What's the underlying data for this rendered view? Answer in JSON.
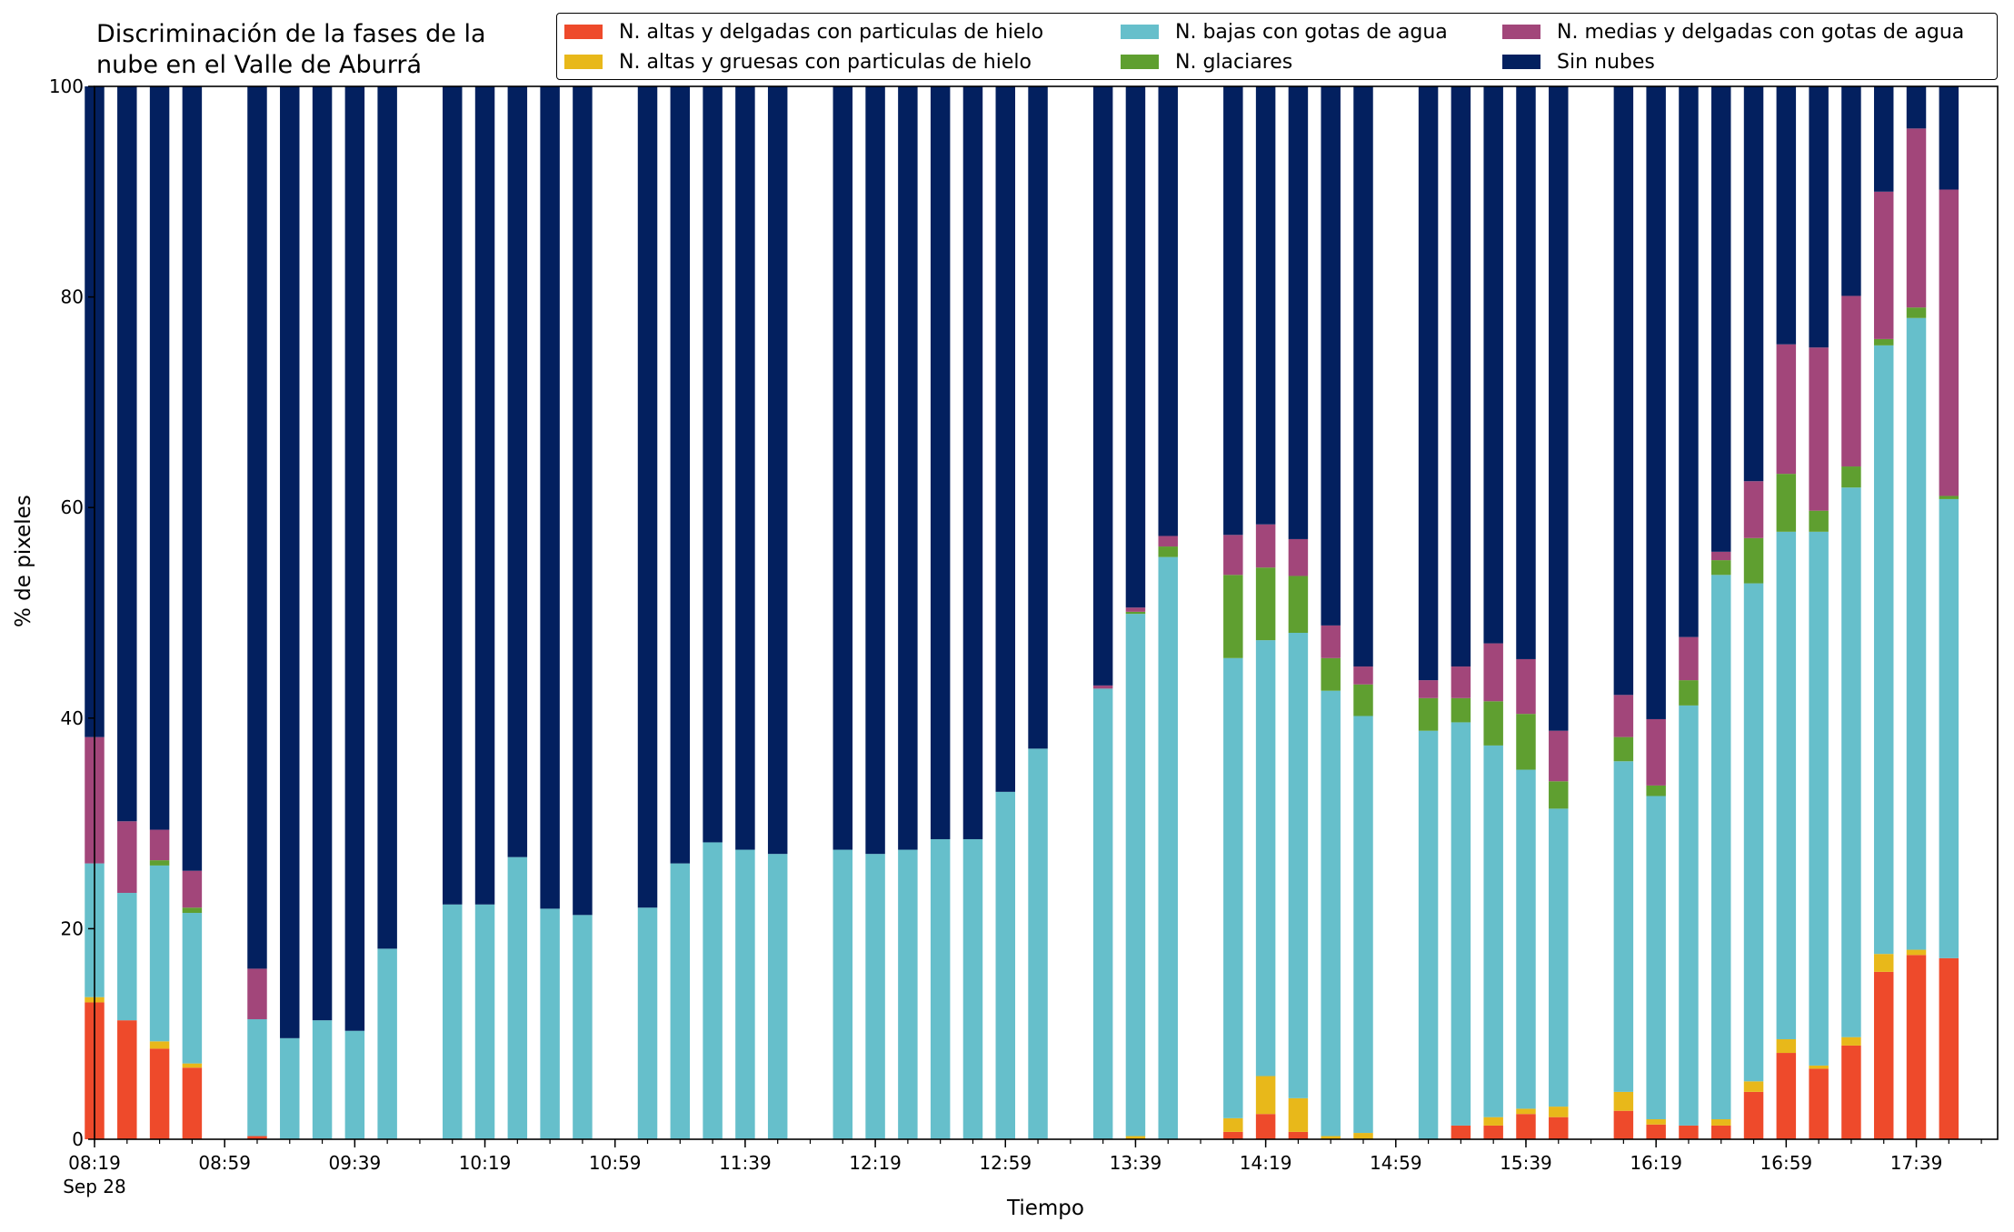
{
  "chart_data": {
    "type": "bar",
    "stacked": true,
    "title_lines": [
      "Discriminación de la fases de la",
      "nube en el Valle de Aburrá"
    ],
    "xlabel": "Tiempo",
    "ylabel": "% de pixeles",
    "ylim": [
      0,
      100
    ],
    "yticks": [
      0,
      20,
      40,
      60,
      80,
      100
    ],
    "xlim": [
      0,
      585
    ],
    "xtick_minutes": [
      0,
      40,
      80,
      120,
      160,
      200,
      240,
      280,
      320,
      360,
      400,
      440,
      480,
      520,
      560
    ],
    "xtick_labels": [
      "08:19",
      "08:59",
      "09:39",
      "10:19",
      "10:59",
      "11:39",
      "12:19",
      "12:59",
      "13:39",
      "14:19",
      "14:59",
      "15:39",
      "16:19",
      "16:59",
      "17:39"
    ],
    "xtick_sublabel": "Sep 28",
    "legend_position": "top-right",
    "grid": false,
    "x_minutes": [
      0,
      10,
      20,
      30,
      50,
      60,
      70,
      80,
      90,
      110,
      120,
      130,
      140,
      150,
      170,
      180,
      190,
      200,
      210,
      230,
      240,
      250,
      260,
      270,
      280,
      290,
      310,
      320,
      330,
      350,
      360,
      370,
      380,
      390,
      410,
      420,
      430,
      440,
      450,
      470,
      480,
      490,
      500,
      510,
      520,
      530,
      540,
      550,
      560,
      570
    ],
    "series": [
      {
        "name": "N. altas y delgadas con particulas de hielo",
        "color": "#ee4a2b",
        "values": [
          13,
          11.3,
          8.6,
          6.8,
          0.3,
          0,
          0,
          0,
          0,
          0,
          0,
          0,
          0,
          0,
          0,
          0,
          0,
          0,
          0,
          0,
          0,
          0,
          0,
          0,
          0,
          0,
          0,
          0,
          0,
          0.7,
          2.4,
          0.7,
          0,
          0,
          0,
          1.3,
          1.3,
          2.4,
          2.1,
          2.7,
          1.4,
          1.3,
          1.3,
          4.5,
          8.2,
          6.7,
          8.9,
          15.9,
          17.5,
          17.2
        ]
      },
      {
        "name": "N. altas y gruesas con particulas de hielo",
        "color": "#e8b81a",
        "values": [
          0.5,
          0,
          0.7,
          0.4,
          0,
          0,
          0,
          0,
          0,
          0,
          0,
          0,
          0,
          0,
          0,
          0,
          0,
          0,
          0,
          0,
          0,
          0,
          0,
          0,
          0,
          0,
          0,
          0.3,
          0,
          1.3,
          3.6,
          3.2,
          0.3,
          0.6,
          0,
          0,
          0.8,
          0.5,
          1.0,
          1.8,
          0.5,
          0,
          0.6,
          1.0,
          1.3,
          0.3,
          0.8,
          1.7,
          0.5,
          0
        ]
      },
      {
        "name": "N. bajas con gotas de agua",
        "color": "#66bfcb",
        "values": [
          12.7,
          12.1,
          16.7,
          14.3,
          11.1,
          9.6,
          11.3,
          10.3,
          18.1,
          22.3,
          22.3,
          26.8,
          21.9,
          21.3,
          22,
          26.2,
          28.2,
          27.5,
          27.1,
          27.5,
          27.1,
          27.5,
          28.5,
          28.5,
          33,
          37.1,
          42.8,
          49.6,
          55.3,
          43.7,
          41.4,
          44.2,
          42.3,
          39.6,
          38.8,
          38.3,
          35.3,
          32.2,
          28.3,
          31.4,
          30.7,
          39.9,
          51.7,
          47.3,
          48.2,
          50.7,
          52.2,
          57.8,
          60.0,
          43.6
        ]
      },
      {
        "name": "N. glaciares",
        "color": "#5f9f30",
        "values": [
          0,
          0,
          0.5,
          0.5,
          0,
          0,
          0,
          0,
          0,
          0,
          0,
          0,
          0,
          0,
          0,
          0,
          0,
          0,
          0,
          0,
          0,
          0,
          0,
          0,
          0,
          0,
          0,
          0.2,
          1.0,
          7.9,
          6.9,
          5.4,
          3.1,
          3.0,
          3.1,
          2.3,
          4.2,
          5.3,
          2.6,
          2.3,
          1.0,
          2.4,
          1.4,
          4.3,
          5.5,
          2.0,
          2.0,
          0.6,
          1.0,
          0.3
        ]
      },
      {
        "name": "N. medias y delgadas con gotas de agua",
        "color": "#a2467a",
        "values": [
          12,
          6.8,
          2.9,
          3.5,
          4.8,
          0,
          0,
          0,
          0,
          0,
          0,
          0,
          0,
          0,
          0,
          0,
          0,
          0,
          0,
          0,
          0,
          0,
          0,
          0,
          0,
          0,
          0.3,
          0.4,
          1.0,
          3.8,
          4.1,
          3.5,
          3.1,
          1.7,
          1.7,
          3.0,
          5.5,
          5.2,
          4.8,
          4.0,
          6.3,
          4.1,
          0.8,
          5.4,
          12.3,
          15.5,
          16.2,
          14.0,
          17.0,
          29.1
        ]
      },
      {
        "name": "Sin nubes",
        "color": "#03205f",
        "values": [
          61.8,
          69.8,
          70.6,
          74.5,
          83.8,
          90.4,
          88.7,
          89.7,
          81.9,
          77.7,
          77.7,
          73.2,
          78.1,
          78.7,
          78,
          73.8,
          71.8,
          72.5,
          72.9,
          72.5,
          72.9,
          72.5,
          71.5,
          71.5,
          67,
          62.9,
          56.9,
          49.5,
          42.7,
          42.6,
          41.6,
          43.0,
          51.2,
          55.1,
          56.4,
          55.1,
          52.9,
          54.4,
          61.2,
          57.8,
          60.1,
          52.3,
          44.2,
          37.5,
          24.5,
          24.8,
          19.9,
          10.0,
          4.0,
          9.8
        ]
      }
    ]
  }
}
